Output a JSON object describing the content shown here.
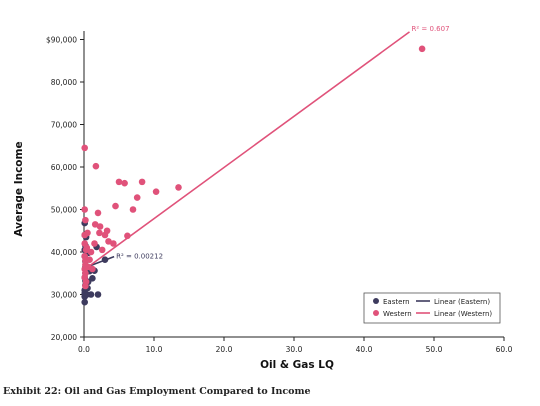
{
  "caption": "Exhibit 22: Oil and Gas Employment Compared to Income",
  "chart_data": {
    "type": "scatter",
    "title": "",
    "xlabel": "Oil & Gas LQ",
    "ylabel": "Average Income",
    "xlim": [
      0,
      60
    ],
    "ylim": [
      20000,
      92000
    ],
    "x_ticks": [
      0,
      10,
      20,
      30,
      40,
      50,
      60
    ],
    "x_tick_labels": [
      "0.0",
      "10.0",
      "20.0",
      "30.0",
      "40.0",
      "50.0",
      "60.0"
    ],
    "y_ticks": [
      20000,
      30000,
      40000,
      50000,
      60000,
      70000,
      80000,
      90000
    ],
    "y_tick_labels": [
      "20,000",
      "30,000",
      "40,000",
      "50,000",
      "60,000",
      "70,000",
      "80,000",
      "$90,000"
    ],
    "grid": false,
    "legend_position": "bottom-right",
    "legend": [
      {
        "label": "Eastern",
        "kind": "marker",
        "series": "eastern"
      },
      {
        "label": "Linear (Eastern)",
        "kind": "line",
        "series": "eastern"
      },
      {
        "label": "Western",
        "kind": "marker",
        "series": "western"
      },
      {
        "label": "Linear (Western)",
        "kind": "line",
        "series": "western"
      }
    ],
    "series": [
      {
        "id": "eastern",
        "name": "Eastern",
        "color": "#3d3b5e",
        "points": [
          [
            0.1,
            28200
          ],
          [
            0.1,
            29500
          ],
          [
            0.1,
            30300
          ],
          [
            0.1,
            31000
          ],
          [
            0.2,
            32200
          ],
          [
            0.2,
            33200
          ],
          [
            0.1,
            34000
          ],
          [
            0.2,
            35000
          ],
          [
            0.2,
            36500
          ],
          [
            0.2,
            37800
          ],
          [
            0.1,
            39000
          ],
          [
            0.1,
            40500
          ],
          [
            0.2,
            41500
          ],
          [
            0.3,
            43500
          ],
          [
            0.1,
            46800
          ],
          [
            0.1,
            44000
          ],
          [
            0.4,
            30000
          ],
          [
            0.5,
            31500
          ],
          [
            0.6,
            33000
          ],
          [
            0.8,
            35500
          ],
          [
            1.0,
            30000
          ],
          [
            1.2,
            33800
          ],
          [
            1.5,
            35600
          ],
          [
            2.0,
            30000
          ],
          [
            1.8,
            41200
          ],
          [
            3.0,
            38200
          ],
          [
            0.6,
            39800
          ],
          [
            0.3,
            36500
          ]
        ],
        "trendline": {
          "name": "Linear (Eastern)",
          "label": "R² = 0.00212",
          "from": [
            0.3,
            36400
          ],
          "to": [
            4.3,
            38900
          ]
        }
      },
      {
        "id": "western",
        "name": "Western",
        "color": "#e0527a",
        "points": [
          [
            0.1,
            64500
          ],
          [
            0.1,
            50000
          ],
          [
            0.2,
            47500
          ],
          [
            0.1,
            44000
          ],
          [
            0.1,
            42000
          ],
          [
            0.3,
            40500
          ],
          [
            0.1,
            39000
          ],
          [
            0.2,
            38000
          ],
          [
            0.2,
            37000
          ],
          [
            0.1,
            36000
          ],
          [
            0.2,
            35000
          ],
          [
            0.1,
            34000
          ],
          [
            0.3,
            33000
          ],
          [
            0.2,
            32000
          ],
          [
            0.5,
            44500
          ],
          [
            0.4,
            41000
          ],
          [
            0.6,
            36500
          ],
          [
            0.8,
            38200
          ],
          [
            1.0,
            40000
          ],
          [
            1.2,
            36000
          ],
          [
            1.5,
            42000
          ],
          [
            1.6,
            46500
          ],
          [
            1.7,
            60200
          ],
          [
            2.0,
            49200
          ],
          [
            2.2,
            44500
          ],
          [
            2.3,
            46000
          ],
          [
            2.6,
            40500
          ],
          [
            3.0,
            44000
          ],
          [
            3.3,
            45000
          ],
          [
            3.5,
            42500
          ],
          [
            4.2,
            42000
          ],
          [
            4.5,
            50800
          ],
          [
            5.0,
            56500
          ],
          [
            5.8,
            56200
          ],
          [
            6.2,
            43800
          ],
          [
            7.0,
            50000
          ],
          [
            7.6,
            52800
          ],
          [
            8.3,
            56500
          ],
          [
            10.3,
            54200
          ],
          [
            13.5,
            55200
          ],
          [
            48.3,
            87800
          ]
        ],
        "trendline": {
          "name": "Linear (Western)",
          "label": "R² = 0.607",
          "from": [
            0.0,
            35800
          ],
          "to": [
            46.5,
            91800
          ]
        }
      }
    ]
  }
}
